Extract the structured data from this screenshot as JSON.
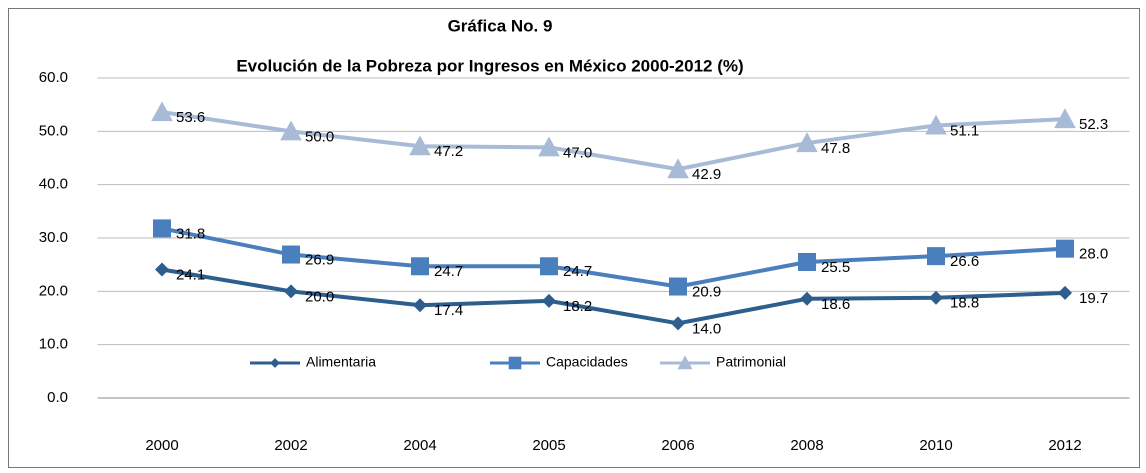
{
  "chart_data": {
    "type": "line",
    "title": "Gráfica No. 9",
    "subtitle": "Evolución de la Pobreza por Ingresos en México 2000-2012 (%)",
    "categories": [
      "2000",
      "2002",
      "2004",
      "2005",
      "2006",
      "2008",
      "2010",
      "2012"
    ],
    "series": [
      {
        "name": "Alimentaria",
        "color": "#2e5e8e",
        "marker": "diamond",
        "values": [
          24.1,
          20.0,
          17.4,
          18.2,
          14.0,
          18.6,
          18.8,
          19.7
        ],
        "value_labels": [
          "24.1",
          "20.0",
          "17.4",
          "18.2",
          "14.0",
          "18.6",
          "18.8",
          "19.7"
        ]
      },
      {
        "name": "Capacidades",
        "color": "#4a7fbd",
        "marker": "square",
        "values": [
          31.8,
          26.9,
          24.7,
          24.7,
          20.9,
          25.5,
          26.6,
          28.0
        ],
        "value_labels": [
          "31.8",
          "26.9",
          "24.7",
          "24.7",
          "20.9",
          "25.5",
          "26.6",
          "28.0"
        ]
      },
      {
        "name": "Patrimonial",
        "color": "#a8bbd6",
        "marker": "triangle",
        "values": [
          53.6,
          50.0,
          47.2,
          47.0,
          42.9,
          47.8,
          51.1,
          52.3
        ],
        "value_labels": [
          "53.6",
          "50.0",
          "47.2",
          "47.0",
          "42.9",
          "47.8",
          "51.1",
          "52.3"
        ]
      }
    ],
    "ylim": [
      0,
      60
    ],
    "yticks": [
      {
        "value": 0,
        "label": "0.0"
      },
      {
        "value": 10,
        "label": "10.0"
      },
      {
        "value": 20,
        "label": "20.0"
      },
      {
        "value": 30,
        "label": "30.0"
      },
      {
        "value": 40,
        "label": "40.0"
      },
      {
        "value": 50,
        "label": "50.0"
      },
      {
        "value": 60,
        "label": "60.0"
      }
    ],
    "grid": true,
    "legend": "bottom"
  }
}
